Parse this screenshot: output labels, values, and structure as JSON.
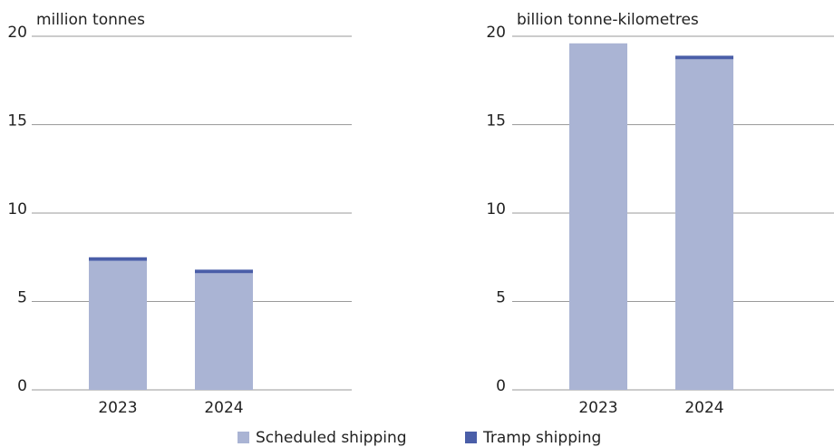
{
  "chart_data": [
    {
      "type": "bar",
      "stacked": true,
      "y_label": "million tonnes",
      "categories": [
        "2023",
        "2024"
      ],
      "series": [
        {
          "name": "Scheduled shipping",
          "color": "#aab4d4",
          "values": [
            7.3,
            6.6
          ]
        },
        {
          "name": "Tramp shipping",
          "color": "#4a5ea8",
          "values": [
            0.2,
            0.2
          ]
        }
      ],
      "ylim": [
        0,
        20
      ],
      "yticks": [
        0,
        5,
        10,
        15,
        20
      ],
      "grid": true
    },
    {
      "type": "bar",
      "stacked": true,
      "y_label": "billion tonne-kilometres",
      "categories": [
        "2023",
        "2024"
      ],
      "series": [
        {
          "name": "Scheduled shipping",
          "color": "#aab4d4",
          "values": [
            19.6,
            18.7
          ]
        },
        {
          "name": "Tramp shipping",
          "color": "#4a5ea8",
          "values": [
            0,
            0.2
          ]
        }
      ],
      "ylim": [
        0,
        20
      ],
      "yticks": [
        0,
        5,
        10,
        15,
        20
      ],
      "grid": true
    }
  ]
}
